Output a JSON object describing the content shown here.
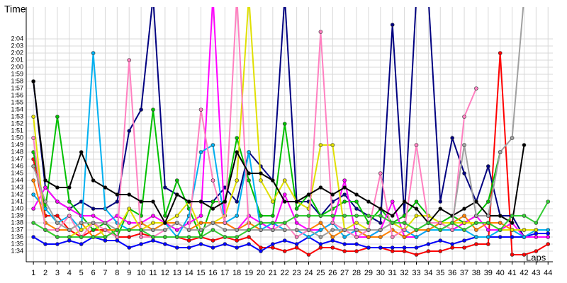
{
  "chart_data": {
    "type": "line",
    "x_label": "Laps",
    "y_label": "Time",
    "x": [
      1,
      2,
      3,
      4,
      5,
      6,
      7,
      8,
      9,
      10,
      11,
      12,
      13,
      14,
      15,
      16,
      17,
      18,
      19,
      20,
      21,
      22,
      23,
      24,
      25,
      26,
      27,
      28,
      29,
      30,
      31,
      32,
      33,
      34,
      35,
      36,
      37,
      38,
      39,
      40,
      41,
      42,
      43,
      44
    ],
    "xlim": [
      0.4,
      44.4
    ],
    "xticks": [
      1,
      2,
      3,
      4,
      5,
      6,
      7,
      8,
      9,
      10,
      11,
      12,
      13,
      14,
      15,
      16,
      17,
      18,
      19,
      20,
      21,
      22,
      23,
      24,
      25,
      26,
      27,
      28,
      29,
      30,
      31,
      32,
      33,
      34,
      35,
      36,
      37,
      38,
      39,
      40,
      41,
      42,
      43,
      44
    ],
    "ylim": [
      92.5,
      128.5
    ],
    "yticks": [
      {
        "value": 94,
        "label": "1:34"
      },
      {
        "value": 95,
        "label": "1:35"
      },
      {
        "value": 96,
        "label": "1:36"
      },
      {
        "value": 97,
        "label": "1:37"
      },
      {
        "value": 98,
        "label": "1:38"
      },
      {
        "value": 99,
        "label": "1:39"
      },
      {
        "value": 100,
        "label": "1:40"
      },
      {
        "value": 101,
        "label": "1:41"
      },
      {
        "value": 102,
        "label": "1:42"
      },
      {
        "value": 103,
        "label": "1:43"
      },
      {
        "value": 104,
        "label": "1:44"
      },
      {
        "value": 105,
        "label": "1:45"
      },
      {
        "value": 106,
        "label": "1:46"
      },
      {
        "value": 107,
        "label": "1:47"
      },
      {
        "value": 108,
        "label": "1:48"
      },
      {
        "value": 109,
        "label": "1:49"
      },
      {
        "value": 110,
        "label": "1:50"
      },
      {
        "value": 111,
        "label": "1:51"
      },
      {
        "value": 112,
        "label": "1:52"
      },
      {
        "value": 113,
        "label": "1:53"
      },
      {
        "value": 114,
        "label": "1:54"
      },
      {
        "value": 115,
        "label": "1:55"
      },
      {
        "value": 116,
        "label": "1:56"
      },
      {
        "value": 117,
        "label": "1:57"
      },
      {
        "value": 118,
        "label": "1:58"
      },
      {
        "value": 119,
        "label": "1:59"
      },
      {
        "value": 120,
        "label": "2:00"
      },
      {
        "value": 121,
        "label": "2:01"
      },
      {
        "value": 122,
        "label": "2:02"
      },
      {
        "value": 123,
        "label": "2:03"
      },
      {
        "value": 124,
        "label": "2:04"
      }
    ],
    "grid": true,
    "series": [
      {
        "color": "#ff0000",
        "values": [
          107,
          99,
          99,
          97,
          96,
          97,
          97,
          96,
          96,
          96.5,
          96,
          96,
          96,
          95.5,
          96,
          95.5,
          96,
          95.5,
          96,
          94.5,
          94.5,
          94,
          94.5,
          93.5,
          94.5,
          94.5,
          94,
          94,
          94.5,
          94.5,
          94,
          94,
          93.5,
          94,
          94,
          94.5,
          94.5,
          95,
          95,
          122,
          93.5,
          93.5,
          94,
          95
        ]
      },
      {
        "color": "#0000ff",
        "values": [
          96,
          95,
          95,
          95.5,
          95,
          96,
          95.5,
          95.5,
          94.5,
          95,
          95.5,
          95,
          94.5,
          94.5,
          95,
          94.5,
          95,
          94.5,
          95,
          94,
          95,
          95.5,
          95,
          96,
          95,
          95.5,
          95,
          95,
          94.5,
          94.5,
          94.5,
          94.5,
          94.5,
          95,
          95.5,
          95,
          95.5,
          96,
          96,
          96,
          96,
          96,
          96.5,
          96.5
        ]
      },
      {
        "color": "#000080",
        "values": [
          118,
          103,
          101,
          100,
          101,
          100,
          100,
          101,
          111,
          114,
          130,
          103,
          102,
          101,
          101,
          101,
          103,
          101,
          108,
          106,
          104,
          130,
          101,
          101,
          99,
          101,
          102,
          100,
          99,
          98,
          126,
          99,
          130,
          130,
          101,
          110,
          105,
          101,
          106,
          99,
          99,
          96,
          null,
          null
        ]
      },
      {
        "color": "#00c000",
        "values": [
          108,
          100,
          113,
          101,
          99,
          97,
          98,
          96,
          100,
          99,
          114,
          99,
          104,
          100,
          96,
          101,
          101,
          110,
          104,
          99,
          99,
          112,
          100,
          102,
          99,
          100,
          101,
          101,
          98,
          100,
          98,
          99,
          101,
          99,
          98,
          99,
          98,
          99,
          101,
          108,
          null,
          null,
          null,
          null
        ]
      },
      {
        "color": "#ff00ff",
        "values": [
          100,
          103,
          101,
          100,
          99,
          99,
          98,
          99,
          98,
          98,
          99,
          98,
          97,
          98,
          99,
          130,
          98,
          97,
          99,
          98,
          97,
          102,
          98,
          97,
          97,
          98,
          104,
          96,
          96,
          97,
          101,
          96,
          96,
          97,
          97,
          97,
          98,
          99,
          97,
          97,
          98,
          96,
          96,
          96
        ]
      },
      {
        "color": "#00b0f0",
        "values": [
          102,
          100,
          98,
          99,
          97,
          122,
          100,
          98,
          97,
          98,
          97,
          98,
          96,
          99,
          108,
          109,
          98,
          99,
          108,
          97,
          98,
          97,
          97,
          96,
          97,
          98,
          96,
          97,
          96,
          97,
          98,
          97,
          96,
          97,
          97,
          97,
          97,
          96,
          96,
          97,
          97,
          96,
          97,
          97
        ]
      },
      {
        "color": "#ff8000",
        "values": [
          104,
          98,
          97,
          97,
          98,
          96,
          97,
          97,
          97,
          98,
          97,
          98,
          98,
          97,
          98,
          98,
          98,
          97,
          98,
          97,
          97,
          97,
          97,
          97,
          98,
          96,
          97,
          97,
          96,
          96,
          97,
          96,
          97,
          97,
          98,
          98,
          99,
          97,
          98,
          98,
          97,
          97,
          97,
          null
        ]
      },
      {
        "color": "#e0e000",
        "values": [
          113,
          97,
          96,
          96,
          97,
          98,
          96,
          97,
          100,
          97,
          98,
          98,
          99,
          101,
          97,
          98,
          99,
          104,
          130,
          104,
          101,
          104,
          101,
          100,
          109,
          109,
          97,
          98,
          97,
          97,
          98,
          97,
          99,
          99,
          98,
          98,
          98,
          98,
          98,
          97,
          97,
          97,
          97,
          null
        ]
      },
      {
        "color": "#ff80c0",
        "values": [
          110,
          97,
          97,
          99,
          96,
          98,
          97,
          96,
          121,
          96,
          96,
          97,
          98,
          97,
          114,
          104,
          98,
          130,
          97,
          97,
          97,
          98,
          96,
          97,
          125,
          98,
          97,
          96,
          97,
          105,
          96,
          97,
          109,
          98,
          98,
          97,
          113,
          117,
          null,
          null,
          null,
          null,
          null,
          null
        ]
      },
      {
        "color": "#000000",
        "values": [
          118,
          104,
          103,
          103,
          108,
          104,
          103,
          102,
          102,
          101,
          101,
          98,
          102,
          101,
          101,
          100,
          101,
          108,
          105,
          105,
          104,
          101,
          101,
          102,
          103,
          102,
          103,
          102,
          101,
          100,
          99,
          101,
          100,
          98,
          100,
          99,
          100,
          101,
          99,
          99,
          98,
          109,
          null,
          null
        ]
      },
      {
        "color": "#a0a0a0",
        "values": [
          106,
          101,
          98,
          97,
          98,
          98,
          98,
          97,
          97,
          97,
          97,
          97,
          98,
          97,
          97,
          98,
          97,
          97,
          97,
          97,
          97,
          97,
          97,
          97,
          96,
          97,
          97,
          97,
          97,
          97,
          98,
          98,
          97,
          98,
          97,
          98,
          109,
          99,
          99,
          108,
          110,
          130,
          null,
          null
        ]
      },
      {
        "color": "#33cc33",
        "values": [
          98,
          97,
          96,
          96,
          96,
          96,
          96,
          97,
          97,
          97,
          96,
          96,
          96,
          96,
          96,
          97,
          96,
          96,
          97,
          98,
          98,
          98,
          99,
          99,
          99,
          99,
          99,
          99,
          99,
          99,
          98,
          98,
          97,
          98,
          97,
          98,
          97,
          98,
          98,
          97,
          99,
          99,
          98,
          101
        ]
      }
    ]
  }
}
